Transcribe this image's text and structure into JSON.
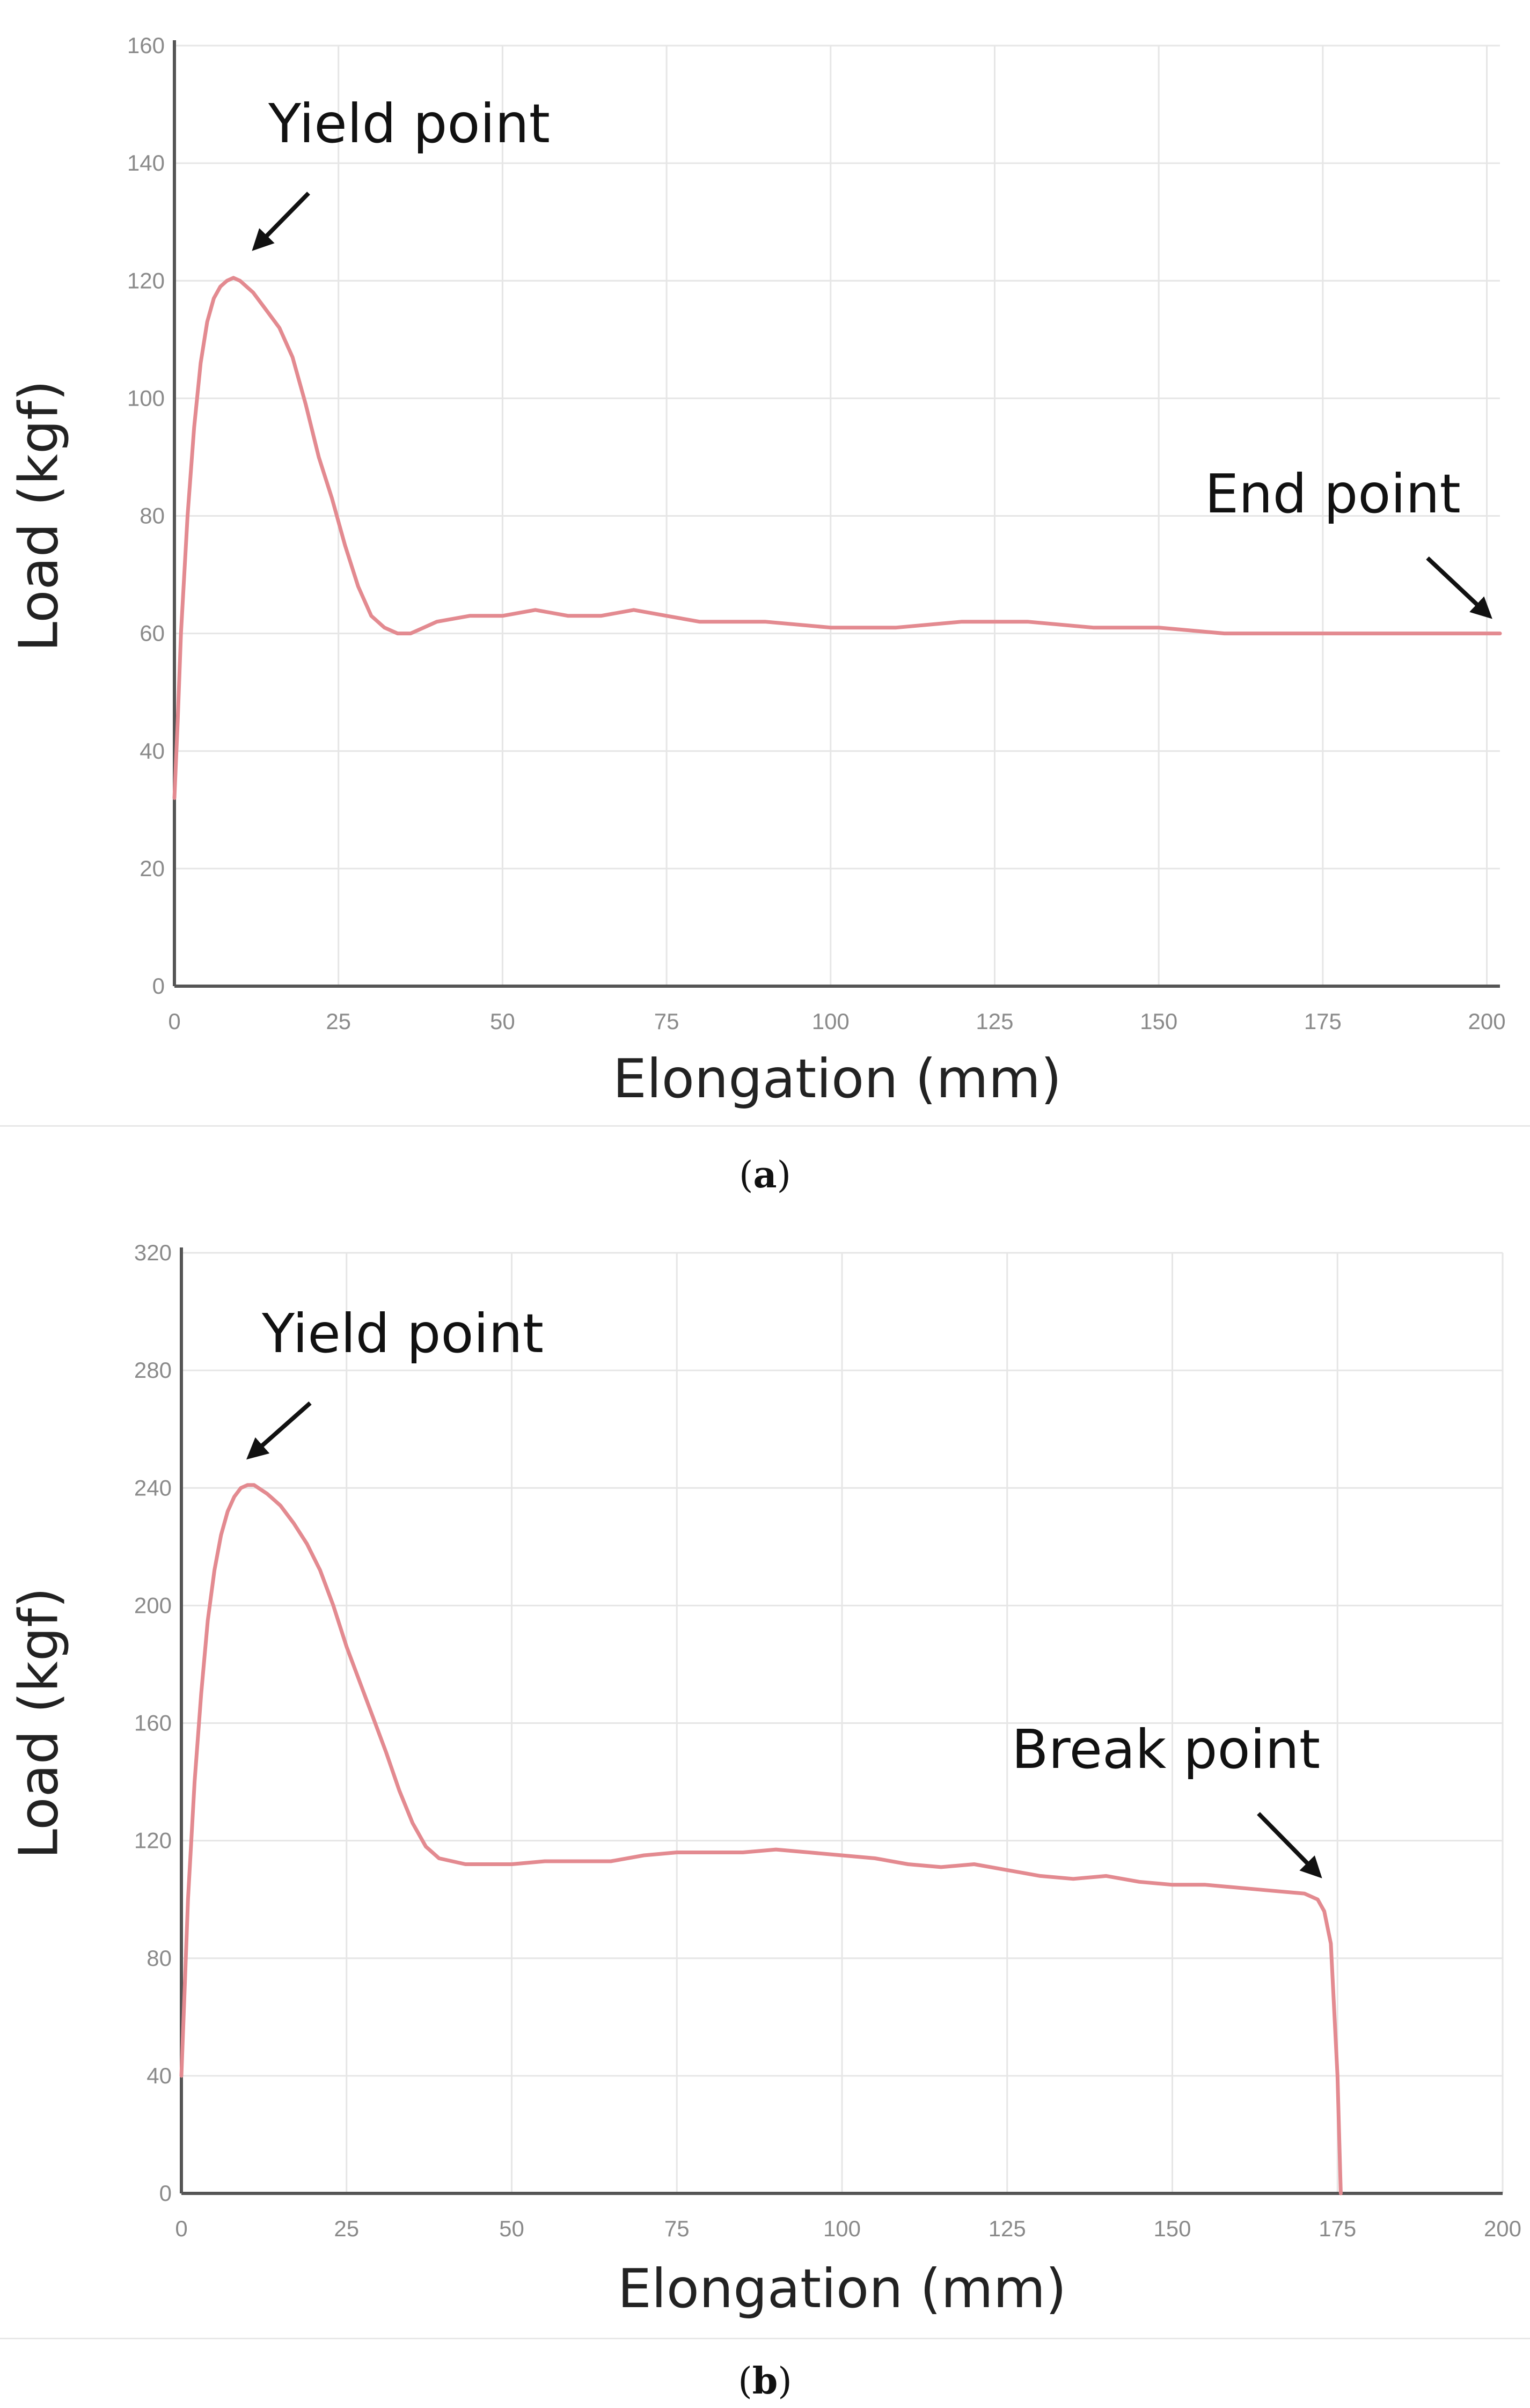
{
  "chart_data": [
    {
      "type": "line",
      "panel_label": "a",
      "xlabel": "Elongation (mm)",
      "ylabel": "Load (kgf)",
      "xlim": [
        0,
        202
      ],
      "ylim": [
        0,
        160
      ],
      "xticks": [
        0,
        25,
        50,
        75,
        100,
        125,
        150,
        175,
        200
      ],
      "yticks": [
        0,
        20,
        40,
        60,
        80,
        100,
        120,
        140,
        160
      ],
      "grid": true,
      "line_color": "#e38a90",
      "series": [
        {
          "x": [
            0,
            0.5,
            1,
            2,
            3,
            4,
            5,
            6,
            7,
            8,
            9,
            10,
            12,
            14,
            16,
            18,
            20,
            22,
            24,
            26,
            28,
            30,
            32,
            34,
            36,
            38,
            40,
            45,
            50,
            55,
            60,
            65,
            70,
            75,
            80,
            90,
            100,
            110,
            120,
            130,
            140,
            150,
            160,
            170,
            180,
            190,
            195,
            200,
            202
          ],
          "y": [
            32,
            45,
            60,
            80,
            95,
            106,
            113,
            117,
            119,
            120,
            120.5,
            120,
            118,
            115,
            112,
            107,
            99,
            90,
            83,
            75,
            68,
            63,
            61,
            60,
            60,
            61,
            62,
            63,
            63,
            64,
            63,
            63,
            64,
            63,
            62,
            62,
            61,
            61,
            62,
            62,
            61,
            61,
            60,
            60,
            60,
            60,
            60,
            60,
            60
          ]
        }
      ],
      "annotations": [
        {
          "text": "Yield point",
          "x": 10,
          "y": 120
        },
        {
          "text": "End point",
          "x": 202,
          "y": 60
        }
      ]
    },
    {
      "type": "line",
      "panel_label": "b",
      "xlabel": "Elongation (mm)",
      "ylabel": "Load (kgf)",
      "xlim": [
        0,
        200
      ],
      "ylim": [
        0,
        320
      ],
      "xticks": [
        0,
        25,
        50,
        75,
        100,
        125,
        150,
        175,
        200
      ],
      "yticks": [
        0,
        40,
        80,
        120,
        160,
        200,
        240,
        280,
        320
      ],
      "grid": true,
      "line_color": "#e38a90",
      "series": [
        {
          "x": [
            0,
            0.5,
            1,
            2,
            3,
            4,
            5,
            6,
            7,
            8,
            9,
            10,
            11,
            13,
            15,
            17,
            19,
            21,
            23,
            25,
            27,
            29,
            31,
            33,
            35,
            37,
            39,
            41,
            43,
            45,
            50,
            55,
            60,
            65,
            70,
            75,
            80,
            85,
            90,
            95,
            100,
            105,
            110,
            115,
            120,
            125,
            130,
            135,
            140,
            145,
            150,
            155,
            160,
            165,
            170,
            172,
            173,
            174,
            175,
            175.5
          ],
          "y": [
            40,
            70,
            100,
            140,
            170,
            195,
            212,
            224,
            232,
            237,
            240,
            241,
            241,
            238,
            234,
            228,
            221,
            212,
            200,
            186,
            174,
            162,
            150,
            137,
            126,
            118,
            114,
            113,
            112,
            112,
            112,
            113,
            113,
            113,
            115,
            116,
            116,
            116,
            117,
            116,
            115,
            114,
            112,
            111,
            112,
            110,
            108,
            107,
            108,
            106,
            105,
            105,
            104,
            103,
            102,
            100,
            96,
            85,
            40,
            0
          ]
        }
      ],
      "annotations": [
        {
          "text": "Yield point",
          "x": 10,
          "y": 241
        },
        {
          "text": "Break point",
          "x": 172,
          "y": 100
        }
      ]
    }
  ]
}
